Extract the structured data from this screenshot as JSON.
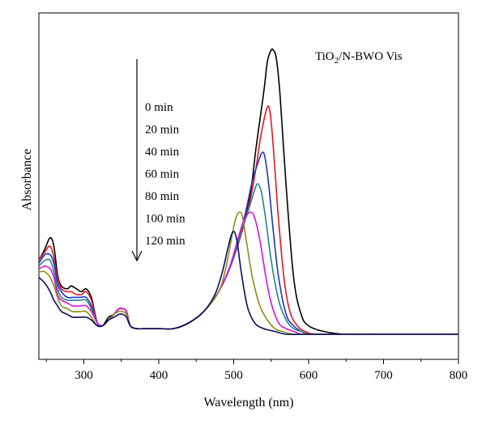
{
  "chart_data": {
    "type": "line",
    "title": "",
    "annotation": "TiO2/N-BWO Vis",
    "annotation_parts": {
      "pre": "TiO",
      "sub": "2",
      "post": "/N-BWO Vis"
    },
    "xlabel": "Wavelength (nm)",
    "ylabel": "Absorbance",
    "xlim": [
      240,
      800
    ],
    "ylim": [
      0,
      1
    ],
    "xticks": [
      300,
      400,
      500,
      600,
      700,
      800
    ],
    "y_tick_labels": false,
    "grid": false,
    "legend_placement": "upper-left, inside plot, with downward arrow",
    "series": [
      {
        "name": "0 min",
        "color": "#000000",
        "x": [
          240,
          248,
          255,
          260,
          265,
          270,
          278,
          283,
          290,
          297,
          303,
          310,
          318,
          325,
          333,
          340,
          347,
          352,
          357,
          362,
          370,
          385,
          400,
          420,
          440,
          460,
          480,
          500,
          520,
          530,
          540,
          545,
          550,
          553,
          557,
          562,
          570,
          580,
          590,
          600,
          620,
          650,
          700,
          750,
          800
        ],
        "y": [
          0.26,
          0.3,
          0.34,
          0.31,
          0.21,
          0.17,
          0.16,
          0.17,
          0.16,
          0.15,
          0.16,
          0.13,
          0.04,
          0.03,
          0.06,
          0.07,
          0.09,
          0.09,
          0.08,
          0.03,
          0.02,
          0.02,
          0.02,
          0.02,
          0.04,
          0.08,
          0.15,
          0.27,
          0.46,
          0.66,
          0.85,
          0.96,
          1.0,
          1.0,
          0.97,
          0.84,
          0.52,
          0.2,
          0.07,
          0.03,
          0.01,
          0.0,
          0.0,
          0.0,
          0.0
        ]
      },
      {
        "name": "20 min",
        "color": "#e8151b",
        "x": [
          240,
          248,
          255,
          260,
          265,
          270,
          278,
          283,
          290,
          297,
          303,
          310,
          318,
          325,
          333,
          340,
          347,
          352,
          357,
          362,
          370,
          385,
          400,
          420,
          440,
          460,
          480,
          500,
          520,
          530,
          535,
          540,
          545,
          548,
          551,
          555,
          560,
          567,
          575,
          585,
          595,
          610,
          650,
          700,
          750,
          800
        ],
        "y": [
          0.26,
          0.29,
          0.31,
          0.27,
          0.2,
          0.16,
          0.15,
          0.15,
          0.14,
          0.14,
          0.15,
          0.12,
          0.04,
          0.03,
          0.05,
          0.07,
          0.09,
          0.09,
          0.08,
          0.03,
          0.02,
          0.02,
          0.02,
          0.02,
          0.04,
          0.08,
          0.15,
          0.27,
          0.45,
          0.59,
          0.68,
          0.75,
          0.8,
          0.79,
          0.72,
          0.58,
          0.4,
          0.2,
          0.08,
          0.03,
          0.01,
          0.0,
          0.0,
          0.0,
          0.0,
          0.0
        ]
      },
      {
        "name": "40 min",
        "color": "#1f33c7",
        "x": [
          240,
          248,
          255,
          260,
          265,
          270,
          278,
          285,
          295,
          303,
          310,
          318,
          325,
          333,
          340,
          347,
          352,
          357,
          362,
          370,
          385,
          400,
          420,
          440,
          460,
          480,
          500,
          515,
          525,
          532,
          538,
          542,
          547,
          553,
          560,
          570,
          580,
          590,
          600,
          620,
          650,
          700,
          750,
          800
        ],
        "y": [
          0.25,
          0.28,
          0.28,
          0.25,
          0.18,
          0.15,
          0.13,
          0.13,
          0.13,
          0.13,
          0.1,
          0.04,
          0.03,
          0.05,
          0.07,
          0.09,
          0.09,
          0.08,
          0.03,
          0.02,
          0.02,
          0.02,
          0.02,
          0.04,
          0.08,
          0.15,
          0.27,
          0.42,
          0.54,
          0.6,
          0.64,
          0.62,
          0.52,
          0.36,
          0.2,
          0.07,
          0.03,
          0.01,
          0.0,
          0.0,
          0.0,
          0.0,
          0.0,
          0.0
        ]
      },
      {
        "name": "60 min",
        "color": "#22838a",
        "x": [
          240,
          248,
          255,
          260,
          265,
          270,
          278,
          285,
          295,
          303,
          310,
          318,
          325,
          333,
          340,
          347,
          352,
          357,
          362,
          370,
          385,
          400,
          420,
          440,
          460,
          480,
          500,
          510,
          520,
          527,
          532,
          537,
          543,
          550,
          560,
          570,
          580,
          590,
          600,
          620,
          650,
          700,
          750,
          800
        ],
        "y": [
          0.24,
          0.26,
          0.26,
          0.22,
          0.16,
          0.13,
          0.12,
          0.12,
          0.12,
          0.12,
          0.09,
          0.04,
          0.03,
          0.05,
          0.07,
          0.09,
          0.09,
          0.08,
          0.03,
          0.02,
          0.02,
          0.02,
          0.02,
          0.04,
          0.08,
          0.15,
          0.27,
          0.36,
          0.44,
          0.5,
          0.53,
          0.5,
          0.4,
          0.26,
          0.12,
          0.05,
          0.02,
          0.01,
          0.0,
          0.0,
          0.0,
          0.0,
          0.0,
          0.0
        ]
      },
      {
        "name": "80 min",
        "color": "#e010e0",
        "x": [
          240,
          248,
          255,
          260,
          265,
          270,
          278,
          285,
          295,
          303,
          310,
          318,
          325,
          333,
          340,
          347,
          352,
          357,
          362,
          370,
          385,
          400,
          420,
          440,
          460,
          480,
          495,
          505,
          512,
          518,
          523,
          528,
          535,
          543,
          550,
          560,
          570,
          580,
          590,
          600,
          620,
          650,
          700,
          750,
          800
        ],
        "y": [
          0.23,
          0.24,
          0.23,
          0.2,
          0.14,
          0.12,
          0.11,
          0.1,
          0.1,
          0.1,
          0.08,
          0.04,
          0.03,
          0.05,
          0.07,
          0.09,
          0.09,
          0.08,
          0.03,
          0.02,
          0.02,
          0.02,
          0.02,
          0.04,
          0.08,
          0.15,
          0.24,
          0.33,
          0.39,
          0.42,
          0.43,
          0.41,
          0.33,
          0.2,
          0.11,
          0.04,
          0.02,
          0.01,
          0.0,
          0.0,
          0.0,
          0.0,
          0.0,
          0.0,
          0.0
        ]
      },
      {
        "name": "100 min",
        "color": "#8c8c14",
        "x": [
          240,
          248,
          255,
          260,
          265,
          270,
          278,
          285,
          295,
          303,
          310,
          318,
          325,
          333,
          340,
          347,
          352,
          357,
          362,
          370,
          385,
          400,
          420,
          440,
          460,
          480,
          490,
          498,
          503,
          508,
          512,
          518,
          525,
          535,
          545,
          555,
          565,
          580,
          600,
          620,
          650,
          700,
          750,
          800
        ],
        "y": [
          0.22,
          0.22,
          0.2,
          0.17,
          0.13,
          0.1,
          0.09,
          0.08,
          0.08,
          0.08,
          0.06,
          0.03,
          0.03,
          0.05,
          0.07,
          0.08,
          0.08,
          0.07,
          0.03,
          0.02,
          0.02,
          0.02,
          0.02,
          0.04,
          0.08,
          0.15,
          0.24,
          0.35,
          0.41,
          0.43,
          0.41,
          0.31,
          0.2,
          0.1,
          0.05,
          0.02,
          0.01,
          0.0,
          0.0,
          0.0,
          0.0,
          0.0,
          0.0,
          0.0
        ]
      },
      {
        "name": "120 min",
        "color": "#0b0b60",
        "x": [
          240,
          248,
          255,
          260,
          265,
          270,
          278,
          285,
          295,
          303,
          310,
          318,
          325,
          333,
          340,
          347,
          352,
          357,
          362,
          370,
          385,
          400,
          420,
          440,
          460,
          475,
          485,
          492,
          497,
          501,
          505,
          510,
          518,
          528,
          540,
          555,
          570,
          590,
          620,
          650,
          700,
          750,
          800
        ],
        "y": [
          0.2,
          0.18,
          0.15,
          0.12,
          0.1,
          0.08,
          0.07,
          0.06,
          0.06,
          0.06,
          0.05,
          0.03,
          0.03,
          0.05,
          0.06,
          0.07,
          0.07,
          0.06,
          0.03,
          0.02,
          0.02,
          0.02,
          0.02,
          0.04,
          0.08,
          0.14,
          0.22,
          0.3,
          0.35,
          0.36,
          0.32,
          0.22,
          0.1,
          0.04,
          0.02,
          0.01,
          0.0,
          0.0,
          0.0,
          0.0,
          0.0,
          0.0,
          0.0
        ]
      }
    ]
  }
}
